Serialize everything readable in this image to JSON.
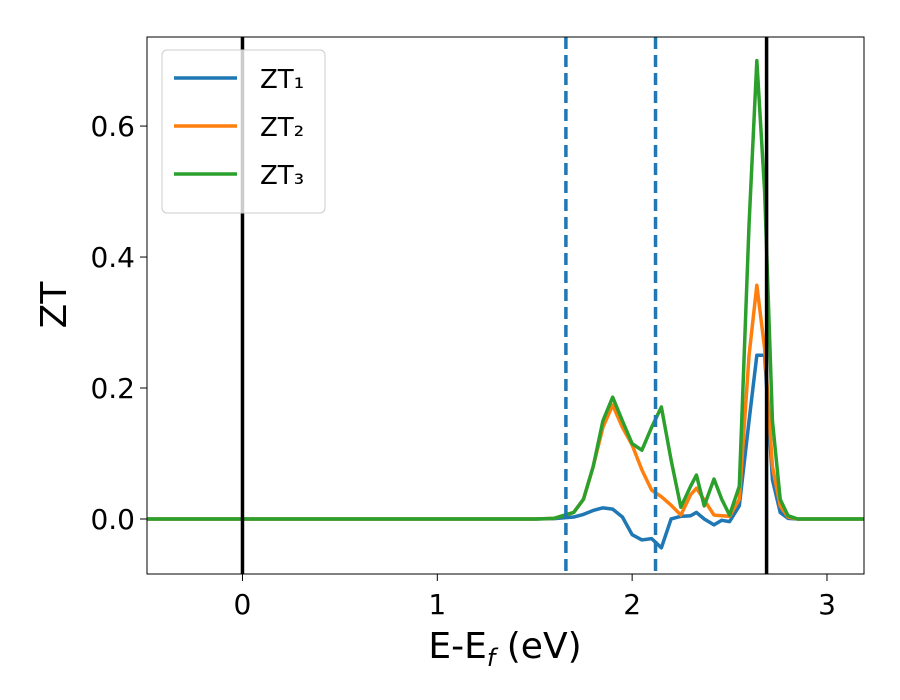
{
  "chart_data": {
    "type": "line",
    "xlabel": [
      "E-E",
      "f",
      " (eV)"
    ],
    "ylabel": "ZT",
    "xlim": [
      -0.49,
      3.19
    ],
    "ylim": [
      -0.084,
      0.736
    ],
    "xticks": [
      0,
      1,
      2,
      3
    ],
    "yticks": [
      {
        "value": 0,
        "label": "0.0"
      },
      0.2,
      0.4,
      0.6
    ],
    "legend": "upper left",
    "x": [
      -0.49,
      0,
      0.5,
      1,
      1.5,
      1.6,
      1.7,
      1.75,
      1.8,
      1.85,
      1.9,
      1.95,
      2.0,
      2.05,
      2.1,
      2.15,
      2.2,
      2.25,
      2.3,
      2.33,
      2.37,
      2.42,
      2.46,
      2.5,
      2.55,
      2.6,
      2.64,
      2.68,
      2.72,
      2.76,
      2.8,
      2.85,
      2.9,
      3.0,
      3.19
    ],
    "series": [
      {
        "name": "ZT₁",
        "color": "#1f77b4",
        "values": [
          0,
          0,
          0,
          0,
          0,
          0.0005,
          0.003,
          0.007,
          0.013,
          0.017,
          0.015,
          0.003,
          -0.024,
          -0.032,
          -0.03,
          -0.044,
          0,
          0.004,
          0.005,
          0.01,
          0,
          -0.009,
          -0.002,
          -0.004,
          0.02,
          0.15,
          0.25,
          0.25,
          0.06,
          0.01,
          0.001,
          0,
          0,
          0,
          0
        ]
      },
      {
        "name": "ZT₂",
        "color": "#ff7f0e",
        "values": [
          0,
          0,
          0,
          0,
          0,
          0.001,
          0.01,
          0.03,
          0.08,
          0.14,
          0.174,
          0.14,
          0.113,
          0.075,
          0.044,
          0.034,
          0.021,
          0.006,
          0.037,
          0.047,
          0.029,
          0.006,
          0.005,
          0.004,
          0.03,
          0.25,
          0.357,
          0.26,
          0.08,
          0.02,
          0.003,
          0,
          0,
          0,
          0
        ]
      },
      {
        "name": "ZT₃",
        "color": "#2ca02c",
        "values": [
          0,
          0,
          0,
          0,
          0,
          0.001,
          0.01,
          0.03,
          0.08,
          0.15,
          0.186,
          0.15,
          0.115,
          0.105,
          0.14,
          0.171,
          0.09,
          0.018,
          0.05,
          0.067,
          0.02,
          0.061,
          0.03,
          0.006,
          0.05,
          0.45,
          0.7,
          0.5,
          0.15,
          0.03,
          0.005,
          0,
          0,
          0,
          0
        ]
      }
    ],
    "vlines": [
      {
        "x": 0,
        "color": "#000000",
        "style": "solid"
      },
      {
        "x": 2.69,
        "color": "#000000",
        "style": "solid"
      },
      {
        "x": 1.66,
        "color": "#1f77b4",
        "style": "dashed"
      },
      {
        "x": 2.12,
        "color": "#1f77b4",
        "style": "dashed"
      }
    ]
  }
}
